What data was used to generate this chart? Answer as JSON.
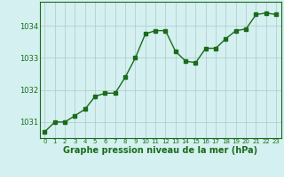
{
  "x": [
    0,
    1,
    2,
    3,
    4,
    5,
    6,
    7,
    8,
    9,
    10,
    11,
    12,
    13,
    14,
    15,
    16,
    17,
    18,
    19,
    20,
    21,
    22,
    23
  ],
  "y": [
    1030.7,
    1031.0,
    1031.0,
    1031.2,
    1031.4,
    1031.8,
    1031.9,
    1031.9,
    1032.4,
    1033.0,
    1033.75,
    1033.85,
    1033.85,
    1033.2,
    1032.9,
    1032.85,
    1033.3,
    1033.3,
    1033.6,
    1033.85,
    1033.9,
    1034.35,
    1034.4,
    1034.35
  ],
  "line_color": "#1a6b1a",
  "marker": "s",
  "marker_size": 2.5,
  "bg_color": "#d4f0f0",
  "grid_color": "#b0c8c8",
  "xlabel": "Graphe pression niveau de la mer (hPa)",
  "xlabel_color": "#1a6b1a",
  "tick_color": "#1a6b1a",
  "ylim": [
    1030.5,
    1034.75
  ],
  "yticks": [
    1031,
    1032,
    1033,
    1034
  ],
  "xticks": [
    0,
    1,
    2,
    3,
    4,
    5,
    6,
    7,
    8,
    9,
    10,
    11,
    12,
    13,
    14,
    15,
    16,
    17,
    18,
    19,
    20,
    21,
    22,
    23
  ],
  "border_color": "#1a6b1a",
  "figsize": [
    3.2,
    2.0
  ],
  "dpi": 100
}
